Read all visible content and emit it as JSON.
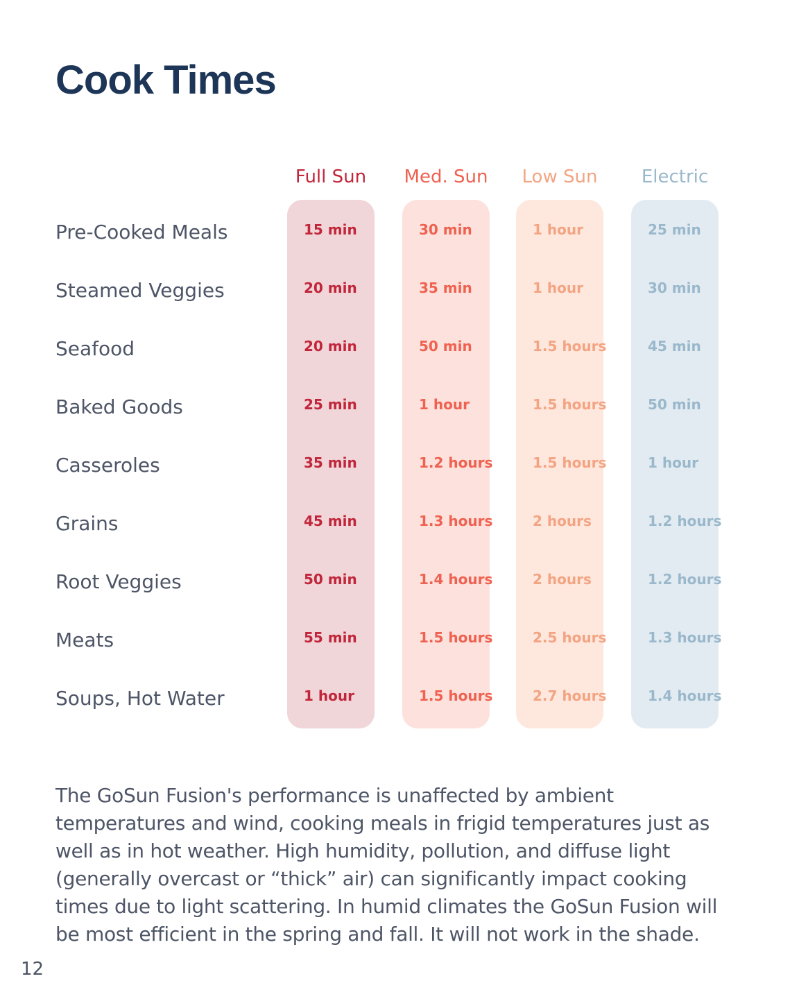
{
  "title": "Cook Times",
  "columns": [
    {
      "label": "Full Sun",
      "text_color": "#c1263a",
      "bg_color": "#f0d5d9"
    },
    {
      "label": "Med. Sun",
      "text_color": "#ef6150",
      "bg_color": "#fde1dc"
    },
    {
      "label": "Low Sun",
      "text_color": "#f3a483",
      "bg_color": "#fee7dd"
    },
    {
      "label": "Electric",
      "text_color": "#9ab8cb",
      "bg_color": "#e2ebf1"
    }
  ],
  "rows": [
    {
      "label": "Pre-Cooked Meals",
      "values": [
        "15 min",
        "30 min",
        "1 hour",
        "25 min"
      ]
    },
    {
      "label": "Steamed Veggies",
      "values": [
        "20 min",
        "35 min",
        "1 hour",
        "30 min"
      ]
    },
    {
      "label": "Seafood",
      "values": [
        "20 min",
        "50 min",
        "1.5 hours",
        "45 min"
      ]
    },
    {
      "label": "Baked Goods",
      "values": [
        "25 min",
        "1 hour",
        "1.5 hours",
        "50 min"
      ]
    },
    {
      "label": "Casseroles",
      "values": [
        "35 min",
        "1.2 hours",
        "1.5 hours",
        "1 hour"
      ]
    },
    {
      "label": "Grains",
      "values": [
        "45 min",
        "1.3 hours",
        "2 hours",
        "1.2 hours"
      ]
    },
    {
      "label": "Root Veggies",
      "values": [
        "50 min",
        "1.4 hours",
        "2 hours",
        "1.2 hours"
      ]
    },
    {
      "label": "Meats",
      "values": [
        "55 min",
        "1.5 hours",
        "2.5 hours",
        "1.3 hours"
      ]
    },
    {
      "label": "Soups, Hot Water",
      "values": [
        "1 hour",
        "1.5 hours",
        "2.7 hours",
        "1.4 hours"
      ]
    }
  ],
  "note": "The GoSun Fusion's performance is unaffected by ambient temperatures and wind, cooking meals in frigid temperatures just as well as in hot weather. High humidity, pollution, and diffuse light (generally overcast or “thick” air) can significantly impact cooking times due to light scattering. In humid climates the GoSun Fusion will be most efficient in the spring and fall. It will not work in the shade.",
  "page_number": "12"
}
